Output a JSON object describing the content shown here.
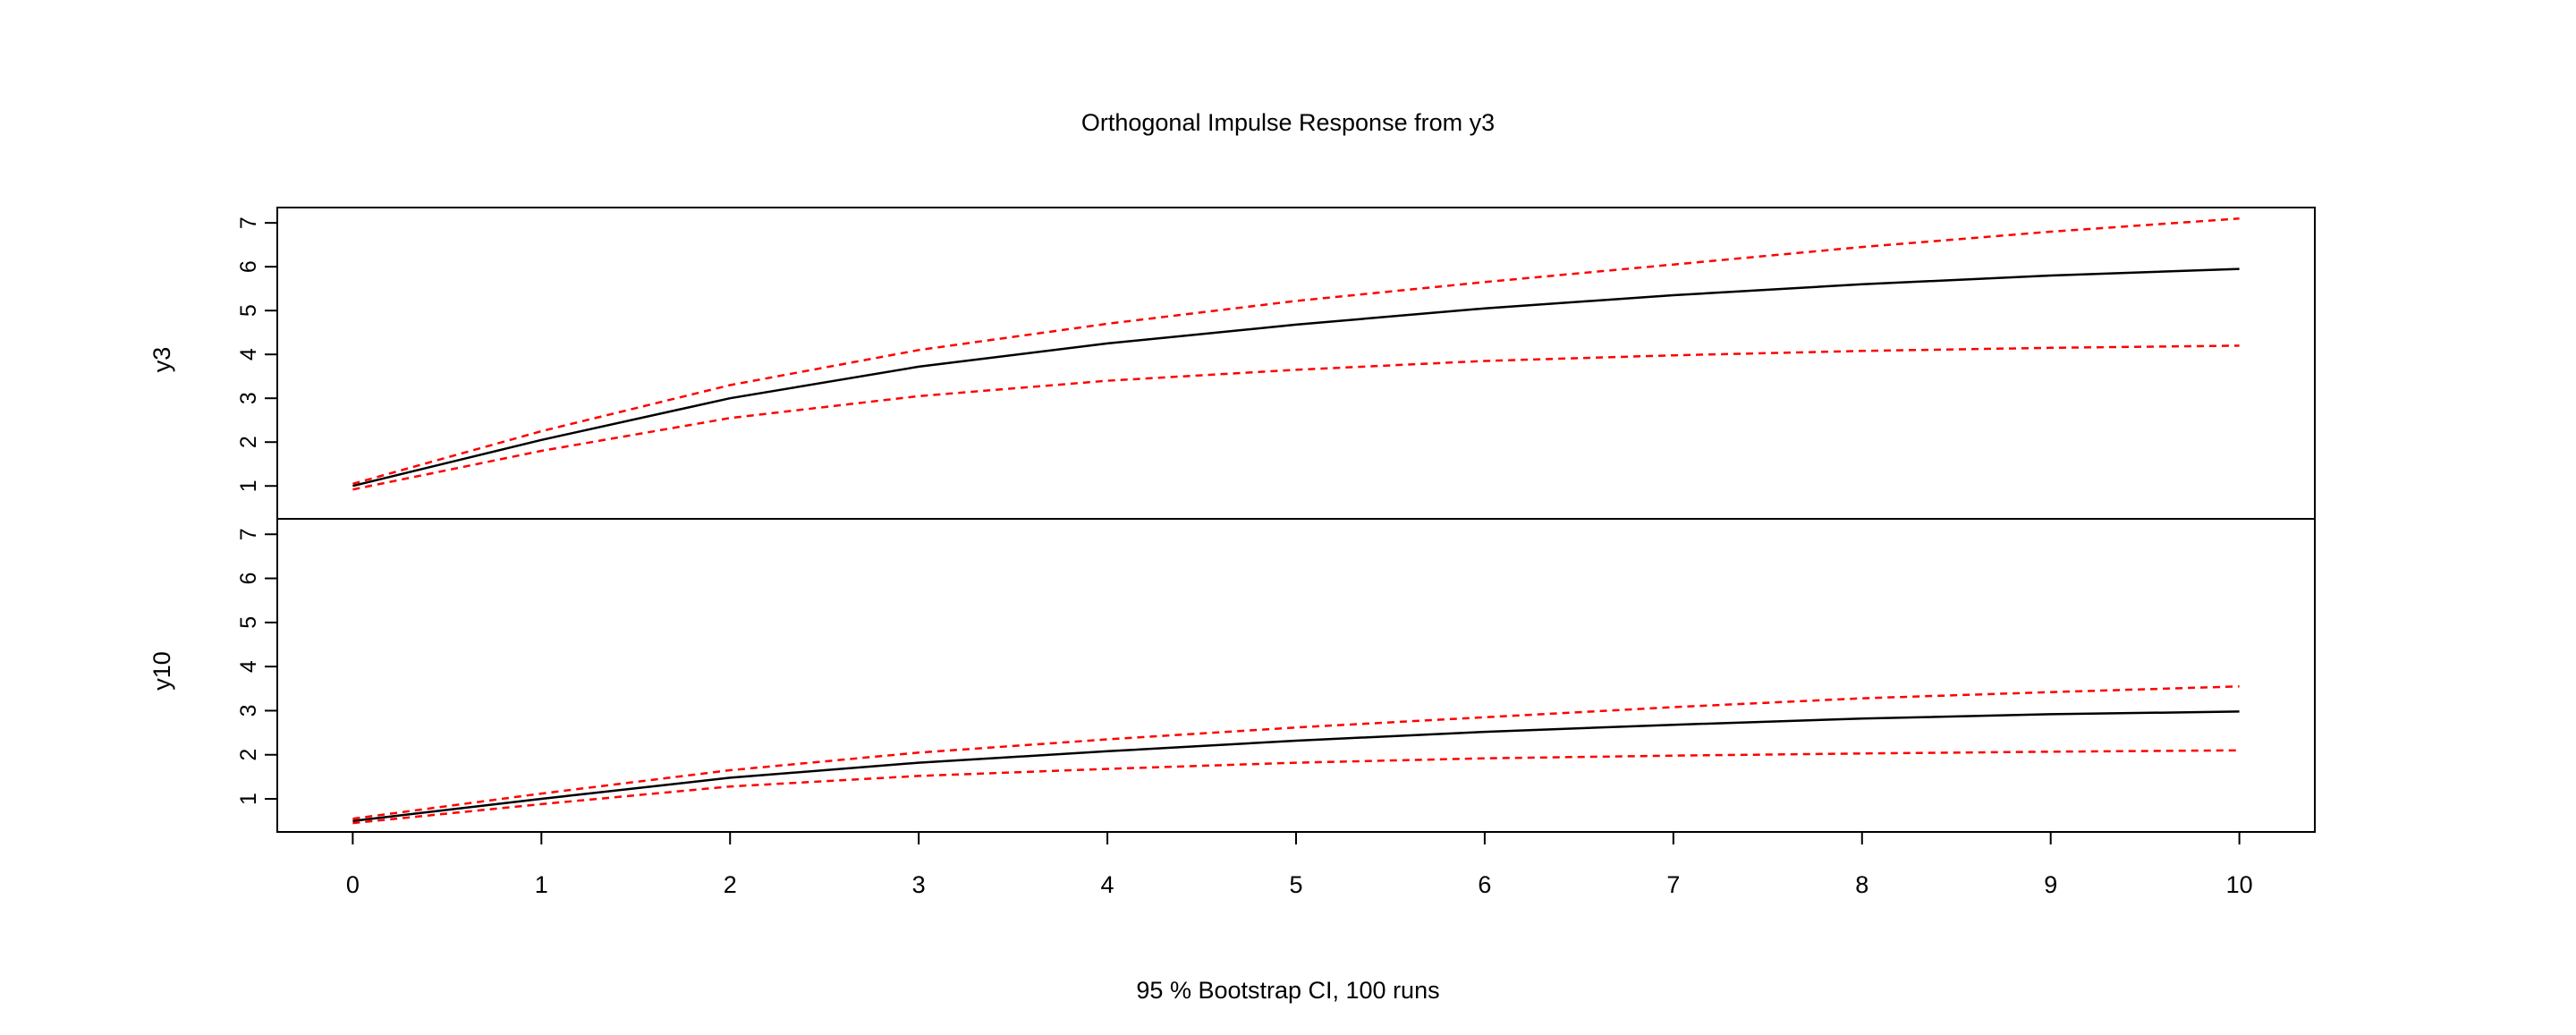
{
  "chart_data": {
    "type": "line",
    "title": "Orthogonal Impulse Response from y3",
    "xlabel": "95 % Bootstrap CI,  100 runs",
    "x": [
      0,
      1,
      2,
      3,
      4,
      5,
      6,
      7,
      8,
      9,
      10
    ],
    "xlim": [
      -0.4,
      10.4
    ],
    "x_ticks": [
      0,
      1,
      2,
      3,
      4,
      5,
      6,
      7,
      8,
      9,
      10
    ],
    "panels": [
      {
        "ylabel": "y3",
        "ylim": [
          0.25,
          7.35
        ],
        "y_ticks": [
          1,
          2,
          3,
          4,
          5,
          6,
          7
        ],
        "series": [
          {
            "role": "response",
            "color": "#000000",
            "dashed": false,
            "values": [
              1.0,
              2.05,
              3.0,
              3.72,
              4.25,
              4.68,
              5.05,
              5.35,
              5.6,
              5.8,
              5.95
            ]
          },
          {
            "role": "upper",
            "color": "#ff0000",
            "dashed": true,
            "values": [
              1.05,
              2.25,
              3.3,
              4.1,
              4.7,
              5.22,
              5.65,
              6.05,
              6.45,
              6.8,
              7.1
            ]
          },
          {
            "role": "lower",
            "color": "#ff0000",
            "dashed": true,
            "values": [
              0.92,
              1.8,
              2.55,
              3.05,
              3.4,
              3.65,
              3.85,
              3.98,
              4.08,
              4.15,
              4.2
            ]
          }
        ]
      },
      {
        "ylabel": "y10",
        "ylim": [
          0.25,
          7.35
        ],
        "y_ticks": [
          1,
          2,
          3,
          4,
          5,
          6,
          7
        ],
        "series": [
          {
            "role": "response",
            "color": "#000000",
            "dashed": false,
            "values": [
              0.5,
              1.0,
              1.48,
              1.82,
              2.08,
              2.32,
              2.52,
              2.68,
              2.82,
              2.92,
              2.98
            ]
          },
          {
            "role": "upper",
            "color": "#ff0000",
            "dashed": true,
            "values": [
              0.55,
              1.12,
              1.65,
              2.05,
              2.35,
              2.62,
              2.85,
              3.08,
              3.28,
              3.42,
              3.55
            ]
          },
          {
            "role": "lower",
            "color": "#ff0000",
            "dashed": true,
            "values": [
              0.45,
              0.88,
              1.28,
              1.52,
              1.68,
              1.82,
              1.92,
              1.98,
              2.03,
              2.07,
              2.1
            ]
          }
        ]
      }
    ],
    "grid": false,
    "legend": "none"
  }
}
